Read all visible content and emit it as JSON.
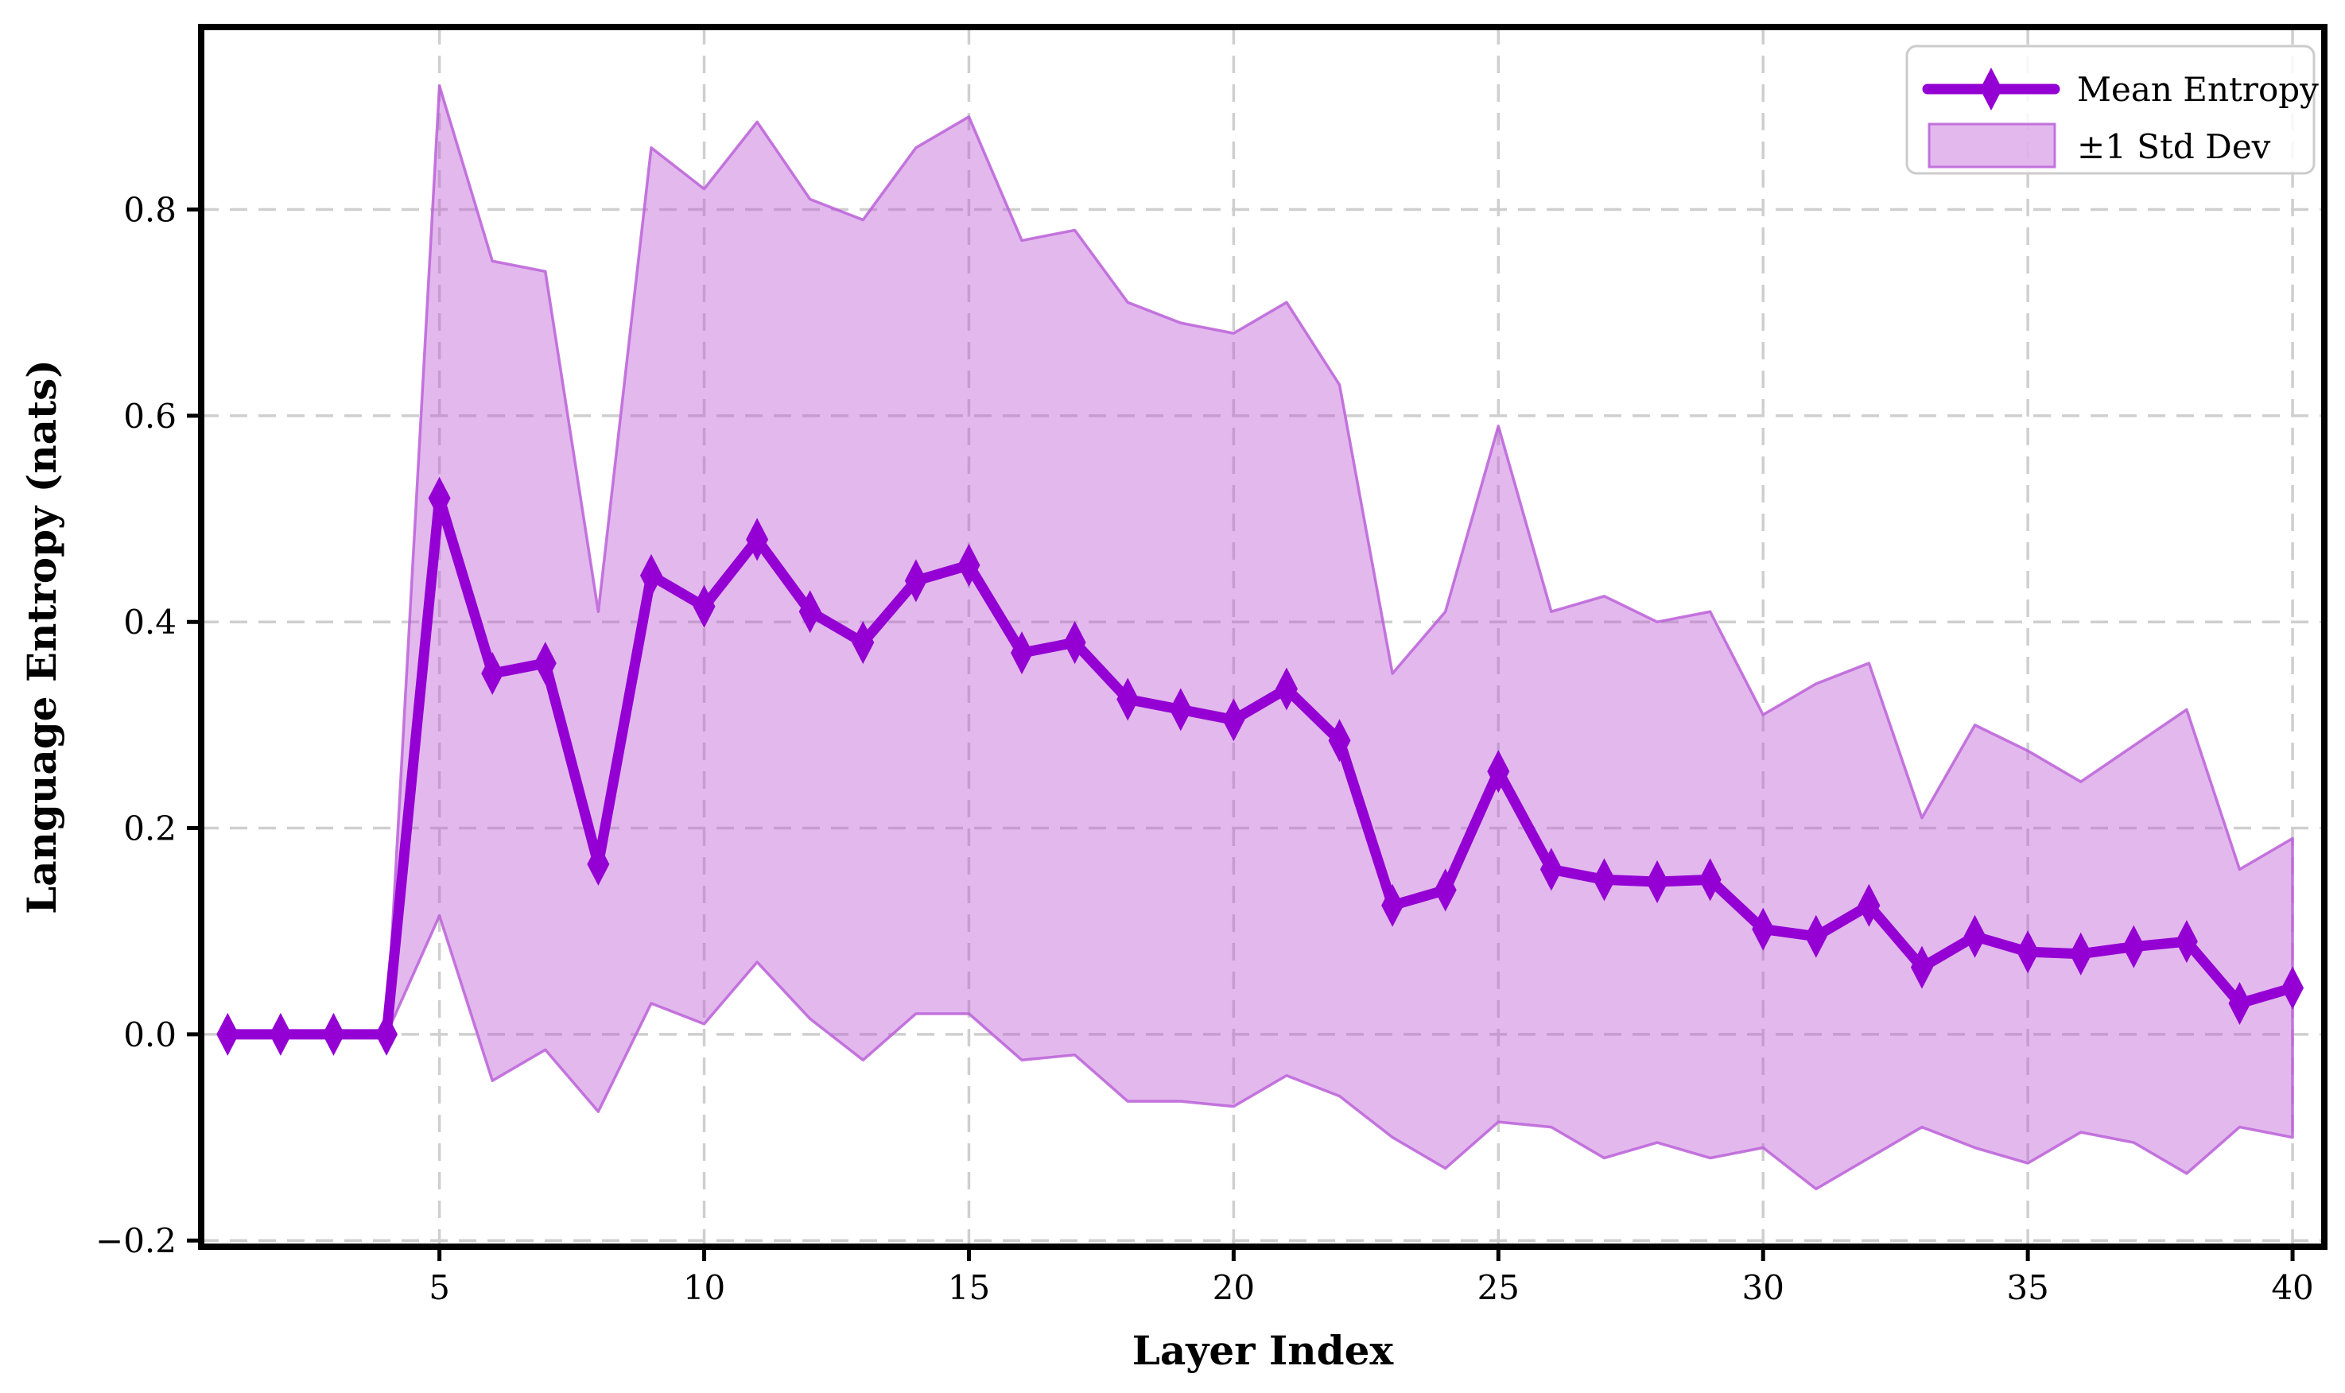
{
  "chart_data": {
    "type": "line",
    "title": "",
    "xlabel": "Layer Index",
    "ylabel": "Language Entropy (nats)",
    "x": [
      1,
      2,
      3,
      4,
      5,
      6,
      7,
      8,
      9,
      10,
      11,
      12,
      13,
      14,
      15,
      16,
      17,
      18,
      19,
      20,
      21,
      22,
      23,
      24,
      25,
      26,
      27,
      28,
      29,
      30,
      31,
      32,
      33,
      34,
      35,
      36,
      37,
      38,
      39,
      40
    ],
    "series": [
      {
        "name": "Mean Entropy",
        "values": [
          0.0,
          0.0,
          0.0,
          0.0,
          0.52,
          0.35,
          0.36,
          0.165,
          0.445,
          0.415,
          0.48,
          0.41,
          0.38,
          0.44,
          0.455,
          0.37,
          0.38,
          0.325,
          0.315,
          0.305,
          0.335,
          0.285,
          0.125,
          0.14,
          0.255,
          0.16,
          0.15,
          0.148,
          0.15,
          0.102,
          0.095,
          0.125,
          0.065,
          0.095,
          0.08,
          0.078,
          0.085,
          0.09,
          0.03,
          0.045
        ]
      },
      {
        "name": "upper band (mean + 1 std)",
        "values": [
          0.0,
          0.0,
          0.0,
          0.0,
          0.92,
          0.75,
          0.74,
          0.41,
          0.86,
          0.82,
          0.885,
          0.81,
          0.79,
          0.86,
          0.89,
          0.77,
          0.78,
          0.71,
          0.69,
          0.68,
          0.71,
          0.63,
          0.35,
          0.41,
          0.59,
          0.41,
          0.425,
          0.4,
          0.41,
          0.31,
          0.34,
          0.36,
          0.21,
          0.3,
          0.275,
          0.245,
          0.28,
          0.315,
          0.16,
          0.19
        ]
      },
      {
        "name": "lower band (mean - 1 std)",
        "values": [
          0.0,
          0.0,
          0.0,
          0.0,
          0.115,
          -0.045,
          -0.015,
          -0.075,
          0.03,
          0.01,
          0.07,
          0.015,
          -0.025,
          0.02,
          0.02,
          -0.025,
          -0.02,
          -0.065,
          -0.065,
          -0.07,
          -0.04,
          -0.06,
          -0.1,
          -0.13,
          -0.085,
          -0.09,
          -0.12,
          -0.105,
          -0.12,
          -0.11,
          -0.15,
          -0.12,
          -0.09,
          -0.11,
          -0.125,
          -0.095,
          -0.105,
          -0.135,
          -0.09,
          -0.1
        ]
      }
    ],
    "legend": [
      {
        "label": "Mean Entropy",
        "type": "line-diamond"
      },
      {
        "label": "±1 Std Dev",
        "type": "patch"
      }
    ],
    "legend_position": "upper right",
    "xlim": [
      0.5,
      40.6
    ],
    "ylim": [
      -0.206,
      0.977
    ],
    "xticks": [
      5,
      10,
      15,
      20,
      25,
      30,
      35,
      40
    ],
    "xtick_labels": [
      "5",
      "10",
      "15",
      "20",
      "25",
      "30",
      "35",
      "40"
    ],
    "yticks": [
      -0.2,
      0.0,
      0.2,
      0.4,
      0.6,
      0.8
    ],
    "ytick_labels": [
      "−0.2",
      "0.0",
      "0.2",
      "0.4",
      "0.6",
      "0.8"
    ],
    "grid": true,
    "grid_style": "dashed",
    "colors": {
      "line": "#9400d3",
      "marker": "#9400d3",
      "band_fill": "#ba55d3",
      "band_edge": "#bb60d8",
      "grid": "#cfcfcf",
      "spine": "#000000",
      "background": "#ffffff",
      "tick_label": "#000000"
    },
    "band_fill_opacity": 0.42
  }
}
